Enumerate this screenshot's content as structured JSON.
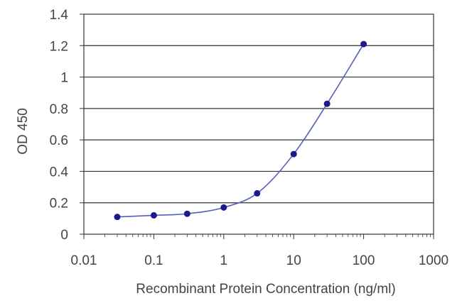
{
  "chart_data": {
    "type": "line",
    "title": "",
    "xlabel": "Recombinant Protein Concentration (ng/ml)",
    "ylabel": "OD 450",
    "x_scale": "log",
    "xlim": [
      0.01,
      1000
    ],
    "ylim": [
      0,
      1.4
    ],
    "x_ticks": [
      "0.01",
      "0.1",
      "1",
      "10",
      "100",
      "1000"
    ],
    "y_ticks": [
      "0",
      "0.2",
      "0.4",
      "0.6",
      "0.8",
      "1",
      "1.2",
      "1.4"
    ],
    "grid": "horizontal",
    "legend": "none",
    "series": [
      {
        "x": [
          0.03,
          0.1,
          0.3,
          1,
          3,
          10,
          30,
          100
        ],
        "y": [
          0.11,
          0.12,
          0.13,
          0.17,
          0.26,
          0.51,
          0.83,
          1.21
        ]
      }
    ],
    "colors": {
      "line": "#5560b8",
      "marker": "#1a1a8c",
      "grid": "#333333",
      "text": "#444444"
    }
  }
}
